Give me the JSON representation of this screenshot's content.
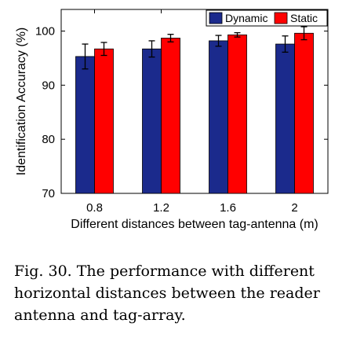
{
  "chart_data": {
    "type": "bar",
    "categories": [
      "0.8",
      "1.2",
      "1.6",
      "2"
    ],
    "xlabel": "Different distances between tag-antenna (m)",
    "ylabel": "Identification Accuracy (%)",
    "ylim": [
      70,
      104
    ],
    "yticks": [
      70,
      80,
      90,
      100
    ],
    "legend_position": "top-right",
    "series": [
      {
        "name": "Dynamic",
        "color": "#1b2a8c",
        "values": [
          95.3,
          96.7,
          98.2,
          97.6
        ],
        "errors": [
          2.3,
          1.5,
          1.0,
          1.5
        ]
      },
      {
        "name": "Static",
        "color": "#ff0000",
        "values": [
          96.7,
          98.7,
          99.3,
          99.6
        ],
        "errors": [
          1.2,
          0.7,
          0.4,
          1.2
        ]
      }
    ]
  },
  "caption": "Fig. 30.  The performance with different horizontal distances between the reader antenna and tag-array."
}
